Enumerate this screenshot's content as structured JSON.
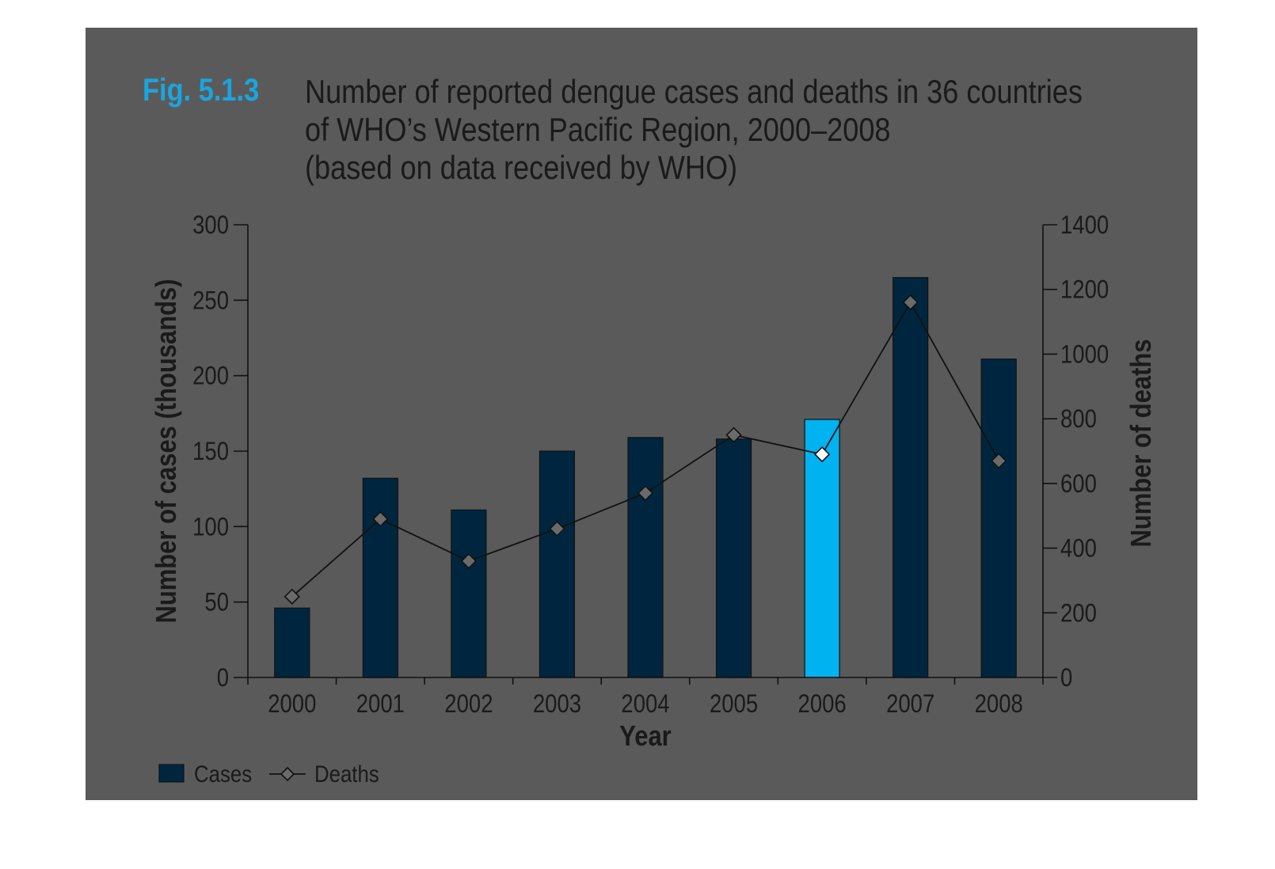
{
  "figure": {
    "label": "Fig. 5.1.3",
    "title_lines": [
      "Number of reported dengue cases and deaths in 36 countries",
      "of WHO’s Western Pacific Region, 2000–2008",
      "(based on data received by WHO)"
    ]
  },
  "colors": {
    "background": "#5a5a5a",
    "bar": "#00263f",
    "bar_highlight": "#00b2f0",
    "line": "#111111",
    "marker_fill": "#6a6a6a",
    "marker_highlight": "#ffffff",
    "fig_label": "#1aa5df",
    "text": "#1a1a1a"
  },
  "chart_data": {
    "type": "bar",
    "categories": [
      "2000",
      "2001",
      "2002",
      "2003",
      "2004",
      "2005",
      "2006",
      "2007",
      "2008"
    ],
    "series": [
      {
        "name": "Cases",
        "type": "bar",
        "axis": "left",
        "values": [
          46,
          132,
          111,
          150,
          159,
          158,
          171,
          265,
          211
        ]
      },
      {
        "name": "Deaths",
        "type": "line",
        "axis": "right",
        "values": [
          250,
          490,
          360,
          460,
          570,
          750,
          690,
          1160,
          670
        ]
      }
    ],
    "xlabel": "Year",
    "ylabel": "Number of cases (thousands)",
    "y2label": "Number of deaths",
    "ylim": [
      0,
      300
    ],
    "y2lim": [
      0,
      1400
    ],
    "yticks": [
      "0",
      "50",
      "100",
      "150",
      "200",
      "250",
      "300"
    ],
    "y2ticks": [
      "0",
      "200",
      "400",
      "600",
      "800",
      "1000",
      "1200",
      "1400"
    ],
    "highlight_category": "2006",
    "grid": false,
    "legend_position": "bottom-left",
    "legend": [
      {
        "label": "Cases",
        "symbol": "bar"
      },
      {
        "label": "Deaths",
        "symbol": "line-diamond"
      }
    ]
  }
}
